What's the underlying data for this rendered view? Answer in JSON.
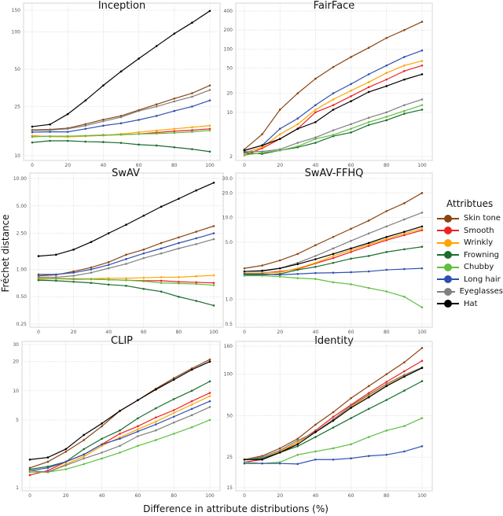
{
  "chart_data": {
    "ylabel": "Fréchet distance",
    "xlabel": "Difference in attribute distributions (%)",
    "legend": {
      "title": "Attribtues",
      "placement": "right",
      "entries": [
        {
          "name": "Skin tone",
          "color": "#8B4513"
        },
        {
          "name": "Smooth",
          "color": "#EE2222"
        },
        {
          "name": "Wrinkly",
          "color": "#FFA500"
        },
        {
          "name": "Frowning",
          "color": "#1A6E2E"
        },
        {
          "name": "Chubby",
          "color": "#5FBF3F"
        },
        {
          "name": "Long hair",
          "color": "#3050B0"
        },
        {
          "name": "Eyeglasses",
          "color": "#808080"
        },
        {
          "name": "Hat",
          "color": "#000000"
        }
      ]
    },
    "x": [
      0,
      10,
      20,
      30,
      40,
      50,
      60,
      70,
      80,
      90,
      100
    ],
    "xticks": [
      "0",
      "20",
      "40",
      "60",
      "80",
      "100"
    ],
    "grid": true,
    "panels": [
      {
        "type": "line",
        "title": "Inception",
        "yscale": "log",
        "ylim": [
          10,
          150
        ],
        "yticks": [
          {
            "v": 10,
            "label": "10"
          },
          {
            "v": 25,
            "label": "25"
          },
          {
            "v": 50,
            "label": "50"
          },
          {
            "v": 100,
            "label": "100"
          },
          {
            "v": 150,
            "label": "150"
          }
        ],
        "series": {
          "Skin tone": [
            16.2,
            16.3,
            16.7,
            18,
            19.6,
            21,
            23.4,
            26,
            29,
            32,
            37
          ],
          "Smooth": [
            14.5,
            14.3,
            14.3,
            14.5,
            14.7,
            14.8,
            15.0,
            15.4,
            15.8,
            16.1,
            16.5
          ],
          "Wrinkly": [
            14.5,
            14.3,
            14.2,
            14.4,
            14.6,
            15.0,
            15.5,
            16.0,
            16.5,
            17.0,
            17.5
          ],
          "Frowning": [
            12.8,
            13.2,
            13.2,
            13.0,
            12.9,
            12.7,
            12.3,
            12.1,
            11.7,
            11.3,
            10.8
          ],
          "Chubby": [
            14.2,
            14.4,
            14.4,
            14.5,
            14.6,
            14.8,
            15.0,
            15.1,
            15.3,
            15.6,
            16.0
          ],
          "Long hair": [
            15.5,
            15.6,
            15.6,
            16.5,
            17.5,
            18.3,
            19.5,
            21,
            23,
            25,
            28
          ],
          "Eyeglasses": [
            16.0,
            16.1,
            16.5,
            17.5,
            19,
            20.5,
            23,
            25,
            27.5,
            30,
            34
          ],
          "Hat": [
            17.2,
            17.9,
            21.7,
            28,
            37,
            48,
            61,
            77,
            97,
            119,
            148
          ]
        }
      },
      {
        "type": "line",
        "title": "FairFace",
        "yscale": "log",
        "ylim": [
          2,
          400
        ],
        "yticks": [
          {
            "v": 2,
            "label": "2"
          },
          {
            "v": 10,
            "label": "10"
          },
          {
            "v": 20,
            "label": "20"
          },
          {
            "v": 50,
            "label": "50"
          },
          {
            "v": 100,
            "label": "100"
          },
          {
            "v": 200,
            "label": "200"
          },
          {
            "v": 400,
            "label": "400"
          }
        ],
        "series": {
          "Skin tone": [
            2.6,
            4.5,
            11,
            20,
            34,
            52,
            75,
            105,
            150,
            200,
            270
          ],
          "Smooth": [
            2.1,
            2.7,
            3.8,
            5.5,
            10,
            13,
            18,
            25,
            33,
            45,
            55
          ],
          "Wrinkly": [
            2.3,
            2.8,
            4.5,
            6.5,
            11,
            16,
            22,
            30,
            42,
            55,
            65
          ],
          "Frowning": [
            2.3,
            2.2,
            2.5,
            2.8,
            3.3,
            4.2,
            4.8,
            6.3,
            7.5,
            9.5,
            11
          ],
          "Chubby": [
            2.1,
            2.3,
            2.5,
            2.9,
            3.8,
            4.4,
            5.5,
            7,
            8.5,
            10.5,
            13
          ],
          "Long hair": [
            2.5,
            3.0,
            5.5,
            8,
            13,
            20,
            28,
            40,
            55,
            75,
            95
          ],
          "Eyeglasses": [
            2.4,
            2.4,
            2.6,
            3.3,
            4.0,
            5.2,
            6.5,
            8.2,
            10,
            13,
            16
          ],
          "Hat": [
            2.5,
            3.0,
            3.8,
            5.5,
            7,
            11,
            15,
            21,
            26,
            33,
            40
          ]
        }
      },
      {
        "type": "line",
        "title": "SwAV",
        "yscale": "log",
        "ylim": [
          0.25,
          10
        ],
        "yticks": [
          {
            "v": 0.25,
            "label": "0.25"
          },
          {
            "v": 0.5,
            "label": "0.50"
          },
          {
            "v": 1,
            "label": "1.00"
          },
          {
            "v": 2.5,
            "label": "2.50"
          },
          {
            "v": 5,
            "label": "5.00"
          },
          {
            "v": 10,
            "label": "10.00"
          }
        ],
        "series": {
          "Skin tone": [
            0.85,
            0.87,
            0.95,
            1.05,
            1.2,
            1.45,
            1.65,
            1.95,
            2.25,
            2.6,
            3.0
          ],
          "Smooth": [
            0.78,
            0.79,
            0.78,
            0.78,
            0.77,
            0.76,
            0.75,
            0.75,
            0.73,
            0.72,
            0.71
          ],
          "Wrinkly": [
            0.78,
            0.8,
            0.79,
            0.79,
            0.8,
            0.8,
            0.81,
            0.82,
            0.82,
            0.84,
            0.86
          ],
          "Frowning": [
            0.76,
            0.75,
            0.73,
            0.71,
            0.68,
            0.66,
            0.61,
            0.57,
            0.5,
            0.45,
            0.4
          ],
          "Chubby": [
            0.8,
            0.79,
            0.79,
            0.78,
            0.77,
            0.76,
            0.74,
            0.71,
            0.7,
            0.69,
            0.67
          ],
          "Long hair": [
            0.88,
            0.88,
            0.92,
            1.0,
            1.12,
            1.3,
            1.5,
            1.7,
            1.95,
            2.2,
            2.5
          ],
          "Eyeglasses": [
            0.82,
            0.82,
            0.85,
            0.92,
            1.03,
            1.15,
            1.33,
            1.5,
            1.7,
            1.9,
            2.15
          ],
          "Hat": [
            1.4,
            1.45,
            1.65,
            2.0,
            2.5,
            3.1,
            3.9,
            4.9,
            6.0,
            7.4,
            9.0
          ]
        }
      },
      {
        "type": "line",
        "title": "SwAV-FFHQ",
        "yscale": "log",
        "ylim": [
          0.5,
          30
        ],
        "yticks": [
          {
            "v": 0.5,
            "label": "0.5"
          },
          {
            "v": 1,
            "label": "1.0"
          },
          {
            "v": 5,
            "label": "5.0"
          },
          {
            "v": 10,
            "label": "10.0"
          },
          {
            "v": 20,
            "label": "20.0"
          },
          {
            "v": 30,
            "label": "30.0"
          }
        ],
        "series": {
          "Skin tone": [
            2.4,
            2.6,
            3.0,
            3.6,
            4.6,
            5.8,
            7.3,
            9.2,
            12,
            15,
            20
          ],
          "Smooth": [
            2.1,
            2.1,
            2.2,
            2.35,
            2.75,
            3.2,
            3.8,
            4.5,
            5.3,
            6.1,
            7.0
          ],
          "Wrinkly": [
            2.1,
            2.1,
            2.15,
            2.4,
            2.8,
            3.4,
            4.0,
            4.7,
            5.5,
            6.4,
            7.3
          ],
          "Frowning": [
            2.0,
            2.0,
            2.05,
            2.3,
            2.5,
            2.8,
            3.15,
            3.4,
            3.8,
            4.1,
            4.4
          ],
          "Chubby": [
            1.95,
            1.95,
            1.9,
            1.82,
            1.78,
            1.62,
            1.53,
            1.38,
            1.25,
            1.08,
            0.8
          ],
          "Long hair": [
            2.05,
            2.05,
            2.0,
            2.05,
            2.1,
            2.12,
            2.15,
            2.2,
            2.3,
            2.35,
            2.4
          ],
          "Eyeglasses": [
            2.2,
            2.2,
            2.4,
            2.8,
            3.4,
            4.2,
            5.2,
            6.4,
            7.8,
            9.5,
            11.5
          ],
          "Hat": [
            2.2,
            2.25,
            2.4,
            2.7,
            3.1,
            3.6,
            4.2,
            4.9,
            5.8,
            6.7,
            7.8
          ]
        }
      },
      {
        "type": "line",
        "title": "CLIP",
        "yscale": "log",
        "ylim": [
          1,
          30
        ],
        "yticks": [
          {
            "v": 1,
            "label": "1"
          },
          {
            "v": 5,
            "label": "5"
          },
          {
            "v": 10,
            "label": "10"
          },
          {
            "v": 20,
            "label": "20"
          },
          {
            "v": 30,
            "label": "30"
          }
        ],
        "series": {
          "Skin tone": [
            1.6,
            1.85,
            2.35,
            3.1,
            4.3,
            6.2,
            8.0,
            10.5,
            13.5,
            17,
            21
          ],
          "Smooth": [
            1.35,
            1.5,
            1.85,
            2.2,
            2.8,
            3.6,
            4.3,
            5.3,
            6.3,
            7.8,
            9.5
          ],
          "Wrinkly": [
            1.45,
            1.45,
            1.75,
            2.1,
            2.7,
            3.3,
            4.0,
            4.8,
            5.9,
            7.2,
            8.8
          ],
          "Frowning": [
            1.55,
            1.65,
            1.85,
            2.5,
            3.2,
            3.9,
            5.2,
            6.6,
            8.2,
            10,
            12.5
          ],
          "Chubby": [
            1.45,
            1.45,
            1.55,
            1.75,
            2.0,
            2.3,
            2.7,
            3.1,
            3.6,
            4.2,
            5.0
          ],
          "Long hair": [
            1.5,
            1.6,
            1.85,
            2.2,
            2.8,
            3.2,
            3.8,
            4.5,
            5.4,
            6.5,
            7.8
          ],
          "Eyeglasses": [
            1.5,
            1.45,
            1.7,
            2.0,
            2.3,
            2.7,
            3.4,
            3.9,
            4.7,
            5.6,
            6.8
          ],
          "Hat": [
            1.95,
            2.05,
            2.5,
            3.5,
            4.6,
            6.2,
            8.0,
            10.3,
            13,
            16.5,
            20
          ]
        }
      },
      {
        "type": "line",
        "title": "Identity",
        "yscale": "log",
        "ylim": [
          15,
          160
        ],
        "yticks": [
          {
            "v": 15,
            "label": "15"
          },
          {
            "v": 25,
            "label": "25"
          },
          {
            "v": 50,
            "label": "50"
          },
          {
            "v": 100,
            "label": "100"
          },
          {
            "v": 160,
            "label": "160"
          }
        ],
        "series": {
          "Skin tone": [
            24,
            25.5,
            29,
            34,
            43,
            53,
            67,
            82,
            100,
            122,
            155
          ],
          "Smooth": [
            23,
            24,
            27,
            32,
            39,
            49,
            60,
            73,
            88,
            105,
            125
          ],
          "Wrinkly": [
            24,
            24.5,
            27.5,
            32,
            38,
            47,
            58,
            70,
            84,
            98,
            112
          ],
          "Frowning": [
            24,
            24.5,
            27,
            30,
            35,
            41,
            48,
            56,
            65,
            76,
            89
          ],
          "Chubby": [
            23,
            22.5,
            23,
            26,
            27.5,
            29,
            31,
            35,
            39,
            42,
            48
          ],
          "Long hair": [
            22.5,
            22.5,
            22.5,
            22.3,
            24,
            24,
            24.5,
            25.5,
            26,
            27.5,
            30
          ],
          "Eyeglasses": [
            24,
            25,
            28,
            33,
            38,
            47,
            59,
            71,
            85,
            99,
            112
          ],
          "Hat": [
            24,
            24,
            27,
            31,
            38,
            46,
            57,
            68,
            82,
            96,
            111
          ]
        }
      }
    ]
  }
}
